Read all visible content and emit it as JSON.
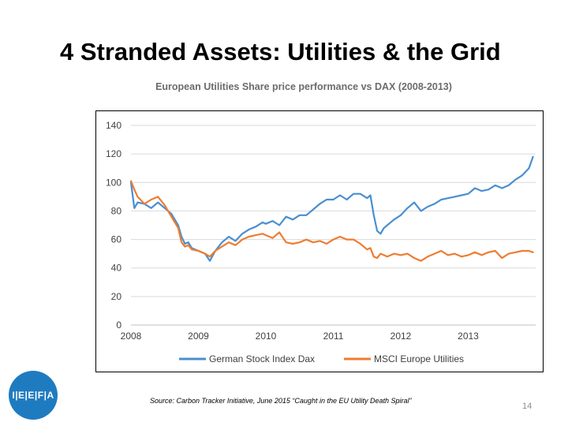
{
  "slide": {
    "title": "4 Stranded Assets: Utilities & the Grid",
    "source": "Source: Carbon Tracker Initiative, June 2015 “Caught in the EU Utility Death Spiral”",
    "page_number": "14",
    "logo_text": "I|E|E|F|A"
  },
  "chart_data": {
    "type": "line",
    "title": "European Utilities Share price performance vs DAX (2008-2013)",
    "xlabel": "",
    "ylabel": "",
    "xlim": [
      2008.0,
      2014.0
    ],
    "ylim": [
      0,
      140
    ],
    "y_ticks": [
      0,
      20,
      40,
      60,
      80,
      100,
      120,
      140
    ],
    "x_ticks": [
      2008,
      2009,
      2010,
      2011,
      2012,
      2013
    ],
    "grid": true,
    "legend_position": "bottom",
    "series": [
      {
        "name": "German Stock Index Dax",
        "color": "#4a8fd0",
        "x": [
          2008.0,
          2008.05,
          2008.1,
          2008.2,
          2008.3,
          2008.4,
          2008.5,
          2008.6,
          2008.7,
          2008.75,
          2008.8,
          2008.85,
          2008.9,
          2009.0,
          2009.1,
          2009.17,
          2009.25,
          2009.35,
          2009.45,
          2009.55,
          2009.65,
          2009.75,
          2009.85,
          2009.95,
          2010.0,
          2010.1,
          2010.2,
          2010.3,
          2010.4,
          2010.5,
          2010.6,
          2010.7,
          2010.8,
          2010.9,
          2011.0,
          2011.1,
          2011.2,
          2011.3,
          2011.4,
          2011.5,
          2011.55,
          2011.6,
          2011.65,
          2011.7,
          2011.75,
          2011.8,
          2011.9,
          2012.0,
          2012.1,
          2012.2,
          2012.3,
          2012.4,
          2012.5,
          2012.6,
          2012.7,
          2012.8,
          2012.9,
          2013.0,
          2013.1,
          2013.2,
          2013.3,
          2013.4,
          2013.5,
          2013.6,
          2013.7,
          2013.8,
          2013.9,
          2013.96
        ],
        "values": [
          100,
          82,
          86,
          85,
          82,
          86,
          82,
          78,
          70,
          62,
          57,
          58,
          54,
          52,
          50,
          45,
          52,
          58,
          62,
          59,
          64,
          67,
          69,
          72,
          71,
          73,
          70,
          76,
          74,
          77,
          77,
          81,
          85,
          88,
          88,
          91,
          88,
          92,
          92,
          89,
          91,
          77,
          66,
          64,
          68,
          70,
          74,
          77,
          82,
          86,
          80,
          83,
          85,
          88,
          89,
          90,
          91,
          92,
          96,
          94,
          95,
          98,
          96,
          98,
          102,
          105,
          110,
          118
        ]
      },
      {
        "name": "MSCI Europe Utilities",
        "color": "#ed7d31",
        "x": [
          2008.0,
          2008.05,
          2008.1,
          2008.2,
          2008.3,
          2008.4,
          2008.5,
          2008.6,
          2008.7,
          2008.75,
          2008.8,
          2008.85,
          2008.9,
          2009.0,
          2009.1,
          2009.17,
          2009.25,
          2009.35,
          2009.45,
          2009.55,
          2009.65,
          2009.75,
          2009.85,
          2009.95,
          2010.0,
          2010.1,
          2010.2,
          2010.3,
          2010.4,
          2010.5,
          2010.6,
          2010.7,
          2010.8,
          2010.9,
          2011.0,
          2011.1,
          2011.2,
          2011.3,
          2011.4,
          2011.5,
          2011.55,
          2011.6,
          2011.65,
          2011.7,
          2011.75,
          2011.8,
          2011.9,
          2012.0,
          2012.1,
          2012.2,
          2012.3,
          2012.4,
          2012.5,
          2012.6,
          2012.7,
          2012.8,
          2012.9,
          2013.0,
          2013.1,
          2013.2,
          2013.3,
          2013.4,
          2013.5,
          2013.6,
          2013.7,
          2013.8,
          2013.9,
          2013.96
        ],
        "values": [
          101,
          95,
          90,
          85,
          88,
          90,
          84,
          76,
          68,
          58,
          55,
          56,
          53,
          52,
          50,
          48,
          52,
          55,
          58,
          56,
          60,
          62,
          63,
          64,
          63,
          61,
          65,
          58,
          57,
          58,
          60,
          58,
          59,
          57,
          60,
          62,
          60,
          60,
          57,
          53,
          54,
          48,
          47,
          50,
          49,
          48,
          50,
          49,
          50,
          47,
          45,
          48,
          50,
          52,
          49,
          50,
          48,
          49,
          51,
          49,
          51,
          52,
          47,
          50,
          51,
          52,
          52,
          51
        ]
      }
    ]
  }
}
